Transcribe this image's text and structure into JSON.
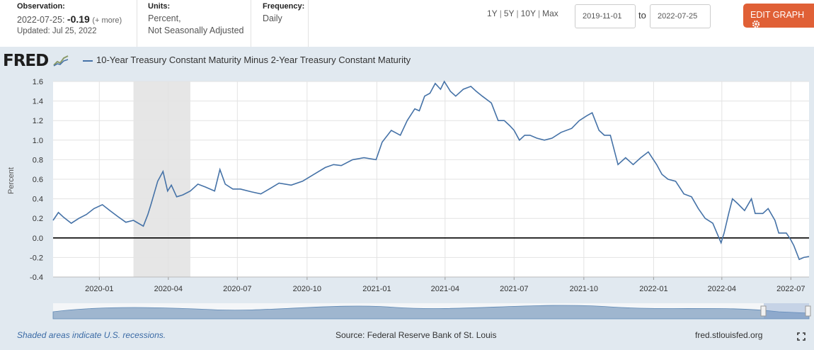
{
  "observation": {
    "label": "Observation:",
    "date": "2022-07-25:",
    "value": "-0.19",
    "more": "(+ more)",
    "updated": "Updated: Jul 25, 2022"
  },
  "units": {
    "label": "Units:",
    "line1": "Percent,",
    "line2": "Not Seasonally Adjusted"
  },
  "frequency": {
    "label": "Frequency:",
    "value": "Daily"
  },
  "ranges": [
    "1Y",
    "5Y",
    "10Y",
    "Max"
  ],
  "date_start": "2019-11-01",
  "to_label": "to",
  "date_end": "2022-07-25",
  "edit_button": "EDIT GRAPH",
  "logo": "FRED",
  "series_label": "10-Year Treasury Constant Maturity Minus 2-Year Treasury Constant Maturity",
  "footnote": "Shaded areas indicate U.S. recessions.",
  "source": "Source: Federal Reserve Bank of St. Louis",
  "site": "fred.stlouisfed.org",
  "colors": {
    "series": "#4572a7",
    "recession": "#e6e6e6",
    "edit_button": "#e06036"
  },
  "chart_data": {
    "type": "line",
    "ylabel": "Percent",
    "ylim": [
      -0.4,
      1.6
    ],
    "yticks": [
      "1.6",
      "1.4",
      "1.2",
      "1.0",
      "0.8",
      "0.6",
      "0.4",
      "0.2",
      "0.0",
      "-0.2",
      "-0.4"
    ],
    "xlim": [
      "2019-11-01",
      "2022-07-25"
    ],
    "xticks": [
      {
        "date": "2020-01-01",
        "label": "2020-01"
      },
      {
        "date": "2020-04-01",
        "label": "2020-04"
      },
      {
        "date": "2020-07-01",
        "label": "2020-07"
      },
      {
        "date": "2020-10-01",
        "label": "2020-10"
      },
      {
        "date": "2021-01-01",
        "label": "2021-01"
      },
      {
        "date": "2021-04-01",
        "label": "2021-04"
      },
      {
        "date": "2021-07-01",
        "label": "2021-07"
      },
      {
        "date": "2021-10-01",
        "label": "2021-10"
      },
      {
        "date": "2022-01-01",
        "label": "2022-01"
      },
      {
        "date": "2022-04-01",
        "label": "2022-04"
      },
      {
        "date": "2022-07-01",
        "label": "2022-07"
      }
    ],
    "recession": {
      "start": "2020-02-15",
      "end": "2020-04-30"
    },
    "zero_line": 0.0,
    "series": [
      {
        "x": [
          "2019-11-01",
          "2019-11-08",
          "2019-11-15",
          "2019-11-25",
          "2019-12-05",
          "2019-12-15",
          "2019-12-25",
          "2020-01-05",
          "2020-01-15",
          "2020-01-25",
          "2020-02-05",
          "2020-02-15",
          "2020-02-28",
          "2020-03-05",
          "2020-03-09",
          "2020-03-15",
          "2020-03-18",
          "2020-03-25",
          "2020-03-31",
          "2020-04-05",
          "2020-04-12",
          "2020-04-20",
          "2020-04-30",
          "2020-05-10",
          "2020-05-20",
          "2020-06-01",
          "2020-06-08",
          "2020-06-15",
          "2020-06-25",
          "2020-07-05",
          "2020-07-20",
          "2020-08-01",
          "2020-08-12",
          "2020-08-25",
          "2020-09-10",
          "2020-09-25",
          "2020-10-10",
          "2020-10-25",
          "2020-11-05",
          "2020-11-15",
          "2020-11-30",
          "2020-12-15",
          "2020-12-31",
          "2021-01-08",
          "2021-01-20",
          "2021-02-01",
          "2021-02-10",
          "2021-02-20",
          "2021-02-26",
          "2021-03-05",
          "2021-03-12",
          "2021-03-19",
          "2021-03-26",
          "2021-03-31",
          "2021-04-08",
          "2021-04-15",
          "2021-04-25",
          "2021-05-05",
          "2021-05-12",
          "2021-05-20",
          "2021-06-01",
          "2021-06-10",
          "2021-06-18",
          "2021-06-25",
          "2021-07-01",
          "2021-07-08",
          "2021-07-15",
          "2021-07-22",
          "2021-07-31",
          "2021-08-10",
          "2021-08-20",
          "2021-09-01",
          "2021-09-15",
          "2021-09-25",
          "2021-10-05",
          "2021-10-12",
          "2021-10-21",
          "2021-10-28",
          "2021-11-05",
          "2021-11-15",
          "2021-11-25",
          "2021-12-05",
          "2021-12-15",
          "2021-12-25",
          "2022-01-05",
          "2022-01-12",
          "2022-01-20",
          "2022-01-30",
          "2022-02-10",
          "2022-02-20",
          "2022-03-01",
          "2022-03-10",
          "2022-03-20",
          "2022-03-31",
          "2022-04-04",
          "2022-04-10",
          "2022-04-15",
          "2022-04-22",
          "2022-05-01",
          "2022-05-10",
          "2022-05-15",
          "2022-05-25",
          "2022-06-01",
          "2022-06-10",
          "2022-06-15",
          "2022-06-25",
          "2022-07-01",
          "2022-07-05",
          "2022-07-12",
          "2022-07-18",
          "2022-07-25"
        ],
        "y": [
          0.18,
          0.26,
          0.21,
          0.15,
          0.2,
          0.24,
          0.3,
          0.34,
          0.28,
          0.22,
          0.16,
          0.18,
          0.12,
          0.24,
          0.34,
          0.5,
          0.58,
          0.68,
          0.48,
          0.54,
          0.42,
          0.44,
          0.48,
          0.55,
          0.52,
          0.48,
          0.7,
          0.55,
          0.5,
          0.5,
          0.47,
          0.45,
          0.5,
          0.56,
          0.54,
          0.58,
          0.65,
          0.72,
          0.75,
          0.74,
          0.8,
          0.82,
          0.8,
          0.98,
          1.1,
          1.05,
          1.2,
          1.32,
          1.3,
          1.45,
          1.48,
          1.58,
          1.52,
          1.6,
          1.5,
          1.45,
          1.52,
          1.55,
          1.5,
          1.45,
          1.38,
          1.2,
          1.2,
          1.15,
          1.1,
          1.0,
          1.05,
          1.05,
          1.02,
          1.0,
          1.02,
          1.08,
          1.12,
          1.2,
          1.25,
          1.28,
          1.1,
          1.05,
          1.05,
          0.75,
          0.82,
          0.75,
          0.82,
          0.88,
          0.75,
          0.65,
          0.6,
          0.58,
          0.45,
          0.42,
          0.3,
          0.2,
          0.15,
          -0.05,
          0.05,
          0.25,
          0.4,
          0.35,
          0.28,
          0.4,
          0.25,
          0.25,
          0.3,
          0.18,
          0.05,
          0.05,
          -0.02,
          -0.08,
          -0.22,
          -0.2,
          -0.19
        ]
      }
    ]
  }
}
